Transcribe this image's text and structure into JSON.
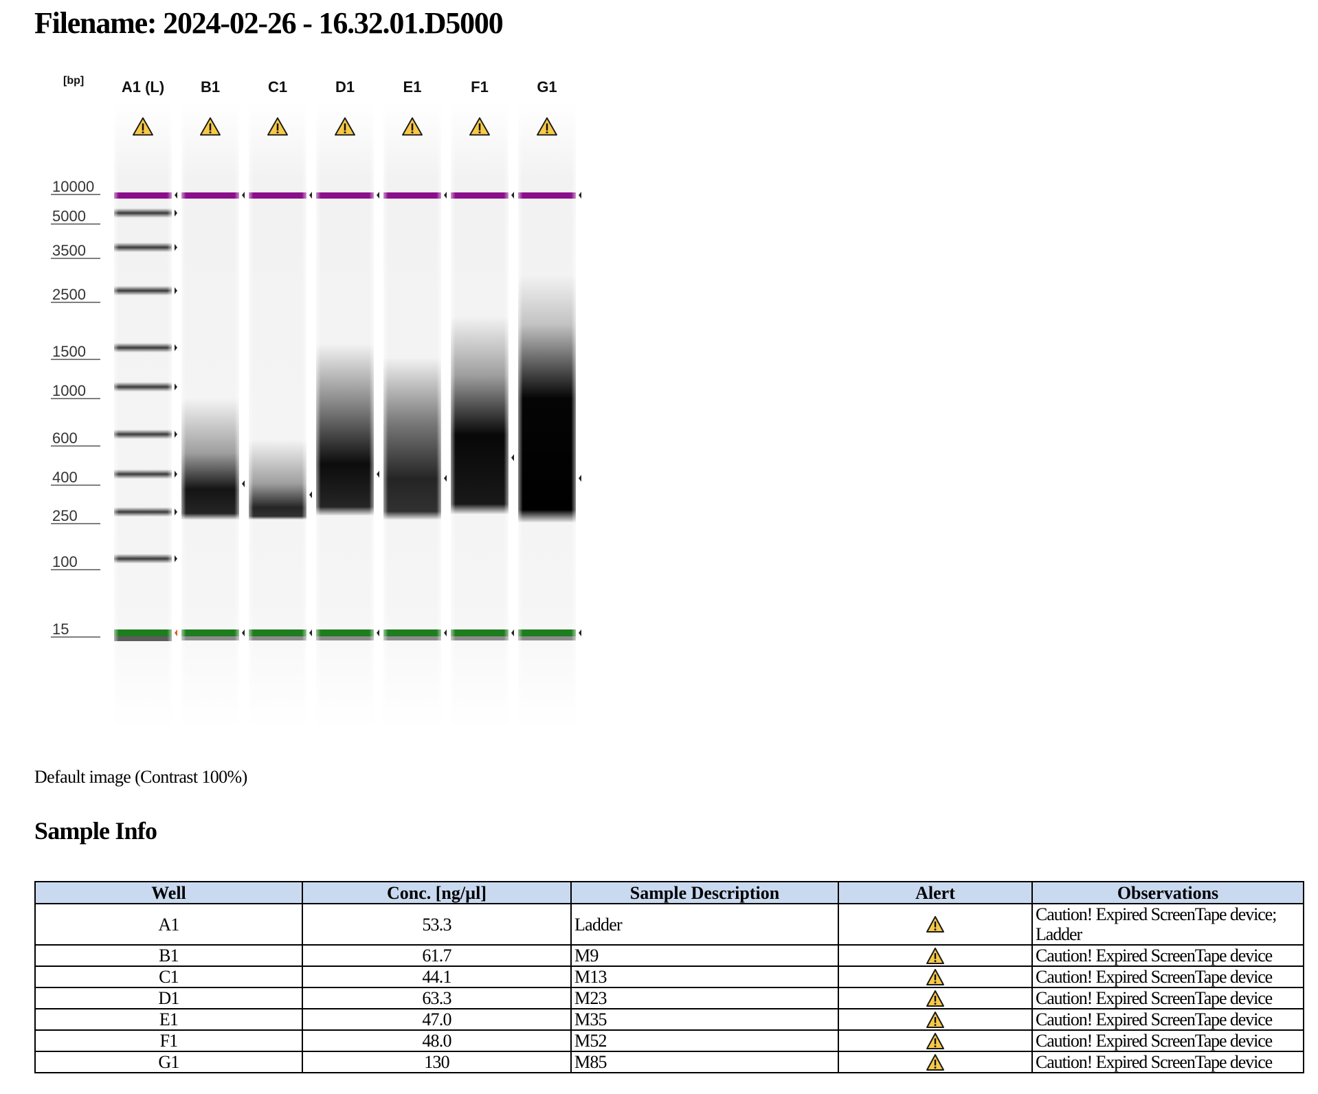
{
  "page": {
    "title": "Filename: 2024-02-26 - 16.32.01.D5000",
    "caption": "Default image (Contrast 100%)",
    "section_heading": "Sample Info"
  },
  "gel": {
    "unit_label": "[bp]",
    "ladder_ticks": [
      "10000",
      "5000",
      "3500",
      "2500",
      "1500",
      "1000",
      "600",
      "400",
      "250",
      "100",
      "15"
    ],
    "lanes": [
      {
        "label": "A1 (L)",
        "alert_icon": "warning-icon"
      },
      {
        "label": "B1",
        "alert_icon": "warning-icon"
      },
      {
        "label": "C1",
        "alert_icon": "warning-icon"
      },
      {
        "label": "D1",
        "alert_icon": "warning-icon"
      },
      {
        "label": "E1",
        "alert_icon": "warning-icon"
      },
      {
        "label": "F1",
        "alert_icon": "warning-icon"
      },
      {
        "label": "G1",
        "alert_icon": "warning-icon"
      }
    ],
    "colors": {
      "upper_marker": "#8a0f8a",
      "lower_marker": "#1e7d1e",
      "warning": "#f7c948"
    }
  },
  "table": {
    "headers": [
      "Well",
      "Conc. [ng/µl]",
      "Sample Description",
      "Alert",
      "Observations"
    ],
    "rows": [
      {
        "well": "A1",
        "conc": "53.3",
        "description": "Ladder",
        "alert": "warning-icon",
        "observations": "Caution! Expired ScreenTape device; Ladder"
      },
      {
        "well": "B1",
        "conc": "61.7",
        "description": "M9",
        "alert": "warning-icon",
        "observations": "Caution! Expired ScreenTape device"
      },
      {
        "well": "C1",
        "conc": "44.1",
        "description": "M13",
        "alert": "warning-icon",
        "observations": "Caution! Expired ScreenTape device"
      },
      {
        "well": "D1",
        "conc": "63.3",
        "description": "M23",
        "alert": "warning-icon",
        "observations": "Caution! Expired ScreenTape device"
      },
      {
        "well": "E1",
        "conc": "47.0",
        "description": "M35",
        "alert": "warning-icon",
        "observations": "Caution! Expired ScreenTape device"
      },
      {
        "well": "F1",
        "conc": "48.0",
        "description": "M52",
        "alert": "warning-icon",
        "observations": "Caution! Expired ScreenTape device"
      },
      {
        "well": "G1",
        "conc": "130",
        "description": "M85",
        "alert": "warning-icon",
        "observations": "Caution! Expired ScreenTape device"
      }
    ]
  }
}
